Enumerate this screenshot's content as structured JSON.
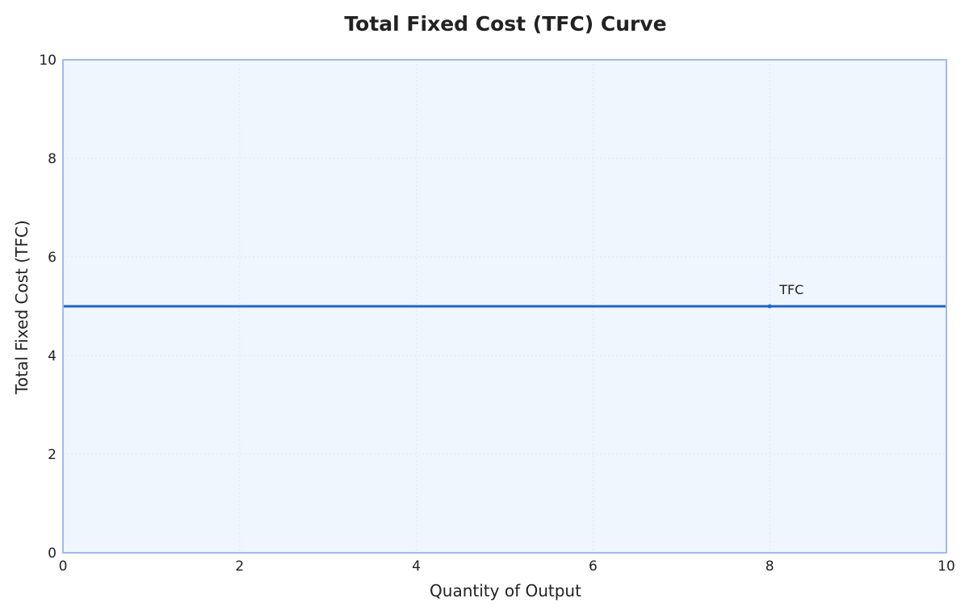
{
  "chart_data": {
    "type": "line",
    "title": "Total Fixed Cost (TFC) Curve",
    "xlabel": "Quantity of Output",
    "ylabel": "Total Fixed Cost (TFC)",
    "xlim": [
      0,
      10
    ],
    "ylim": [
      0,
      10
    ],
    "x_ticks": [
      "0",
      "2",
      "4",
      "6",
      "8",
      "10"
    ],
    "y_ticks": [
      "0",
      "2",
      "4",
      "6",
      "8",
      "10"
    ],
    "grid": true,
    "series": [
      {
        "name": "TFC",
        "x": [
          0,
          10
        ],
        "values": [
          5,
          5
        ],
        "label_at_x": 8,
        "label_at_y": 5
      }
    ],
    "colors": {
      "plot_background": "#f0f6fe",
      "plot_border": "#9bbcec",
      "grid": "#dde7f5",
      "line": "#1a64d6"
    }
  }
}
